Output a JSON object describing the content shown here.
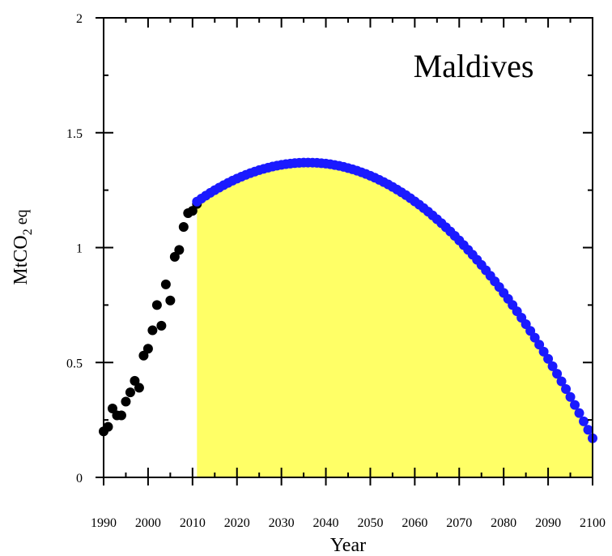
{
  "chart_data": {
    "type": "scatter",
    "title": "Maldives",
    "xlabel": "Year",
    "ylabel": {
      "main": "MtCO",
      "subscript": "2",
      "suffix": " eq"
    },
    "xlim": [
      1990,
      2100
    ],
    "ylim": [
      0,
      2
    ],
    "xticks": [
      1990,
      2000,
      2010,
      2020,
      2030,
      2040,
      2050,
      2060,
      2070,
      2080,
      2090,
      2100
    ],
    "yticks": [
      0,
      0.5,
      1,
      1.5,
      2
    ],
    "ytick_labels": [
      "0",
      "0.5",
      "1",
      "1.5",
      "2"
    ],
    "grid": false,
    "legend": "none",
    "colors": {
      "historical": "#000000",
      "projection": "#1a1aff",
      "area_fill": "#ffff66"
    },
    "series": [
      {
        "x": [
          1990,
          1991,
          1992,
          1993,
          1994,
          1995,
          1996,
          1997,
          1998,
          1999,
          2000,
          2001,
          2002,
          2003,
          2004,
          2005,
          2006,
          2007,
          2008,
          2009,
          2010,
          2011
        ],
        "values": [
          0.2,
          0.22,
          0.3,
          0.27,
          0.27,
          0.33,
          0.37,
          0.42,
          0.39,
          0.53,
          0.56,
          0.64,
          0.75,
          0.66,
          0.84,
          0.77,
          0.96,
          0.99,
          1.09,
          1.15,
          1.16,
          1.19
        ]
      },
      {
        "projection": {
          "start_year": 2011,
          "end_year": 2100,
          "start_value": 1.2,
          "peak_year": 2036,
          "peak_value": 1.37,
          "end_value": 0.17
        }
      }
    ]
  }
}
